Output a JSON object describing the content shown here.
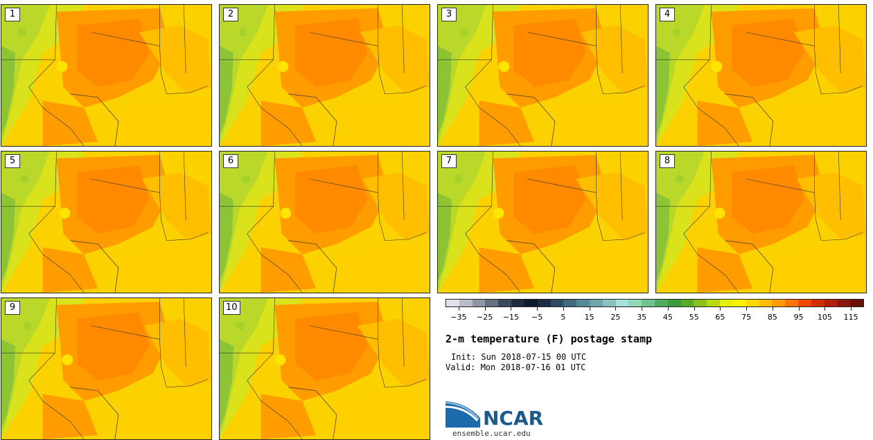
{
  "panels": [
    {
      "label": "1"
    },
    {
      "label": "2"
    },
    {
      "label": "3"
    },
    {
      "label": "4"
    },
    {
      "label": "5"
    },
    {
      "label": "6"
    },
    {
      "label": "7"
    },
    {
      "label": "8"
    },
    {
      "label": "9"
    },
    {
      "label": "10"
    }
  ],
  "colorbar": {
    "colors": [
      "#e1e1ea",
      "#b9bcc6",
      "#8e96a6",
      "#627080",
      "#3a4a5c",
      "#1c2a3a",
      "#0e1a2e",
      "#1b2d44",
      "#2d4b63",
      "#406a80",
      "#568896",
      "#6ea5aa",
      "#88c3c0",
      "#a6e2d8",
      "#90d8b8",
      "#70c38a",
      "#4fab5e",
      "#3f9a3c",
      "#5aab2a",
      "#8dc21c",
      "#b8d810",
      "#e4ef0a",
      "#fff200",
      "#ffd800",
      "#ffbf00",
      "#ff9c00",
      "#ff7300",
      "#f04a00",
      "#d03000",
      "#b21f0a",
      "#8c170c",
      "#661008"
    ],
    "tick_labels": [
      "-35",
      "-25",
      "-15",
      "-5",
      "5",
      "15",
      "25",
      "35",
      "45",
      "55",
      "65",
      "75",
      "85",
      "95",
      "105",
      "115"
    ]
  },
  "title": "2-m temperature (F) postage stamp",
  "init": "Init: Sun 2018-07-15 00 UTC",
  "valid": "Valid: Mon 2018-07-16 01 UTC",
  "logo": {
    "text": "NCAR",
    "icon": "ncar-swoosh-logo"
  },
  "url": "ensemble.ucar.edu"
}
